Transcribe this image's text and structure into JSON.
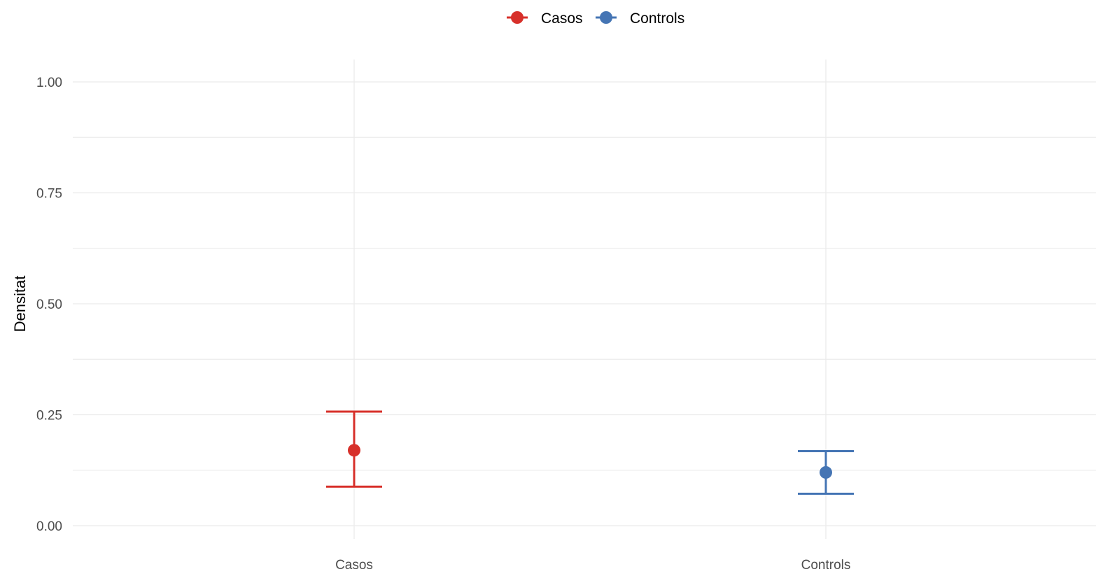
{
  "chart_data": {
    "type": "errorbar",
    "categories": [
      "Casos",
      "Controls"
    ],
    "series": [
      {
        "name": "Casos",
        "category": "Casos",
        "value": 0.17,
        "lower": 0.088,
        "upper": 0.257,
        "color": "#d7302a"
      },
      {
        "name": "Controls",
        "category": "Controls",
        "value": 0.12,
        "lower": 0.072,
        "upper": 0.168,
        "color": "#4575b4"
      }
    ],
    "xlabel": "",
    "ylabel": "Densitat",
    "ylim": [
      0,
      1
    ],
    "yticks": [
      "0.00",
      "0.25",
      "0.50",
      "0.75",
      "1.00"
    ],
    "grid": true,
    "legend_position": "top"
  }
}
